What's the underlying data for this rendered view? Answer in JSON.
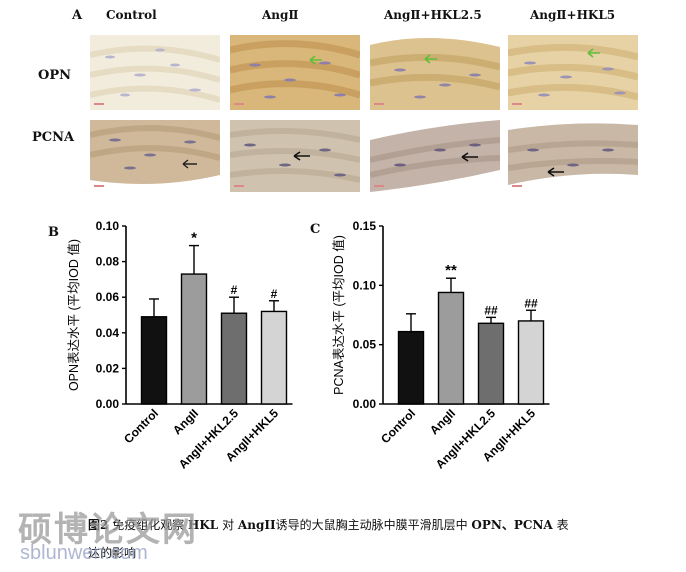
{
  "panel_a": {
    "letter": "A",
    "columns": [
      "Control",
      "AngⅡ",
      "AngⅡ+HKL2.5",
      "AngⅡ+HKL5"
    ],
    "rows": [
      "OPN",
      "PCNA"
    ]
  },
  "panel_b": {
    "letter": "B"
  },
  "panel_c": {
    "letter": "C"
  },
  "colors": {
    "control": "#111111",
    "angii": "#9c9c9c",
    "hkl25": "#6e6e6e",
    "hkl5": "#d4d4d4",
    "green_arrow": "#5fbf3a"
  },
  "chart_data": [
    {
      "type": "bar",
      "ylabel": "OPN表达水平 (平均IOD 值)",
      "categories": [
        "Control",
        "AngII",
        "AngII+HKL2.5",
        "AngII+HKL5"
      ],
      "values": [
        0.049,
        0.073,
        0.051,
        0.052
      ],
      "errors": [
        0.01,
        0.016,
        0.009,
        0.006
      ],
      "significance": [
        "",
        "*",
        "#",
        "#"
      ],
      "ylim": [
        0.0,
        0.1
      ],
      "yticks": [
        "0.00",
        "0.02",
        "0.04",
        "0.06",
        "0.08",
        "0.10"
      ]
    },
    {
      "type": "bar",
      "ylabel": "PCNA表达水平 (平均IOD 值)",
      "categories": [
        "Control",
        "AngII",
        "AngII+HKL2.5",
        "AngII+HKL5"
      ],
      "values": [
        0.061,
        0.094,
        0.068,
        0.07
      ],
      "errors": [
        0.015,
        0.012,
        0.005,
        0.009
      ],
      "significance": [
        "",
        "**",
        "##",
        "##"
      ],
      "ylim": [
        0.0,
        0.15
      ],
      "yticks": [
        "0.00",
        "0.05",
        "0.10",
        "0.15"
      ]
    }
  ],
  "caption": {
    "fig_no": "图2",
    "text_a": "免疫组化观察",
    "hkl": "HKL",
    "text_b": "对",
    "angii": "AngII",
    "text_c": "诱导的大鼠胸主动脉中膜平滑肌层中",
    "markers": "OPN、PCNA",
    "text_d": "表",
    "line2": "达的影响"
  },
  "watermark": {
    "brand": "硕博论文网",
    "url": "sblunwen.com"
  }
}
